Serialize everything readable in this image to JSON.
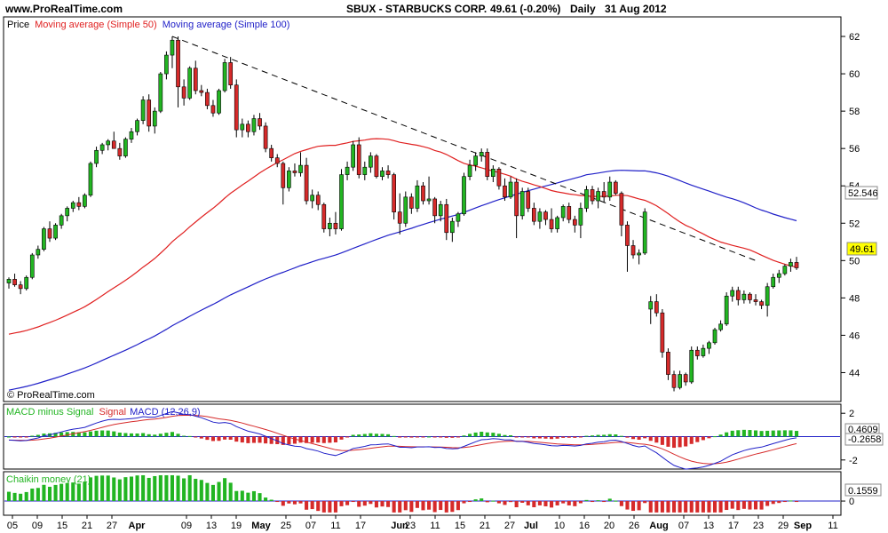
{
  "header": {
    "site": "www.ProRealTime.com",
    "title": "SBUX - STARBUCKS CORP.",
    "quote": "49.61 (-0.20%)",
    "period": "Daily",
    "date": "31 Aug 2012"
  },
  "watermark": "© ProRealTime.com",
  "colors": {
    "up": "#22b522",
    "down": "#d62a2a",
    "ma50": "#e02020",
    "ma100": "#2020c8",
    "trendline": "#000000",
    "macd_pos": "#22b522",
    "macd_neg": "#d62a2a",
    "price_badge": "#ffff00",
    "value_badge": "#ffffff"
  },
  "chart_data": [
    {
      "type": "candlestick",
      "legend": {
        "price": "Price",
        "ma50": "Moving average (Simple 50)",
        "ma100": "Moving average (Simple 100)"
      },
      "ylim": [
        42.5,
        63
      ],
      "yticks": [
        44,
        46,
        48,
        50,
        52,
        54,
        56,
        58,
        60,
        62
      ],
      "last_price_label": "49.61",
      "ma100_label": "52.546",
      "x_day_labels": [
        "05",
        "09",
        "15",
        "21",
        "27",
        "09",
        "13",
        "19",
        "25",
        "07",
        "11",
        "17",
        "23",
        "11",
        "15",
        "21",
        "27",
        "10",
        "16",
        "20",
        "26",
        "07",
        "13",
        "17",
        "23",
        "29",
        "11"
      ],
      "x_month_labels": [
        "Apr",
        "May",
        "Jun",
        "Jul",
        "Aug",
        "Sep"
      ],
      "candles": [
        {
          "o": 48.8,
          "h": 49.1,
          "l": 48.5,
          "c": 49.0
        },
        {
          "o": 49.0,
          "h": 49.3,
          "l": 48.6,
          "c": 48.7
        },
        {
          "o": 48.7,
          "h": 48.9,
          "l": 48.2,
          "c": 48.5
        },
        {
          "o": 48.5,
          "h": 49.2,
          "l": 48.4,
          "c": 49.1
        },
        {
          "o": 49.1,
          "h": 50.4,
          "l": 49.0,
          "c": 50.3
        },
        {
          "o": 50.3,
          "h": 50.8,
          "l": 50.1,
          "c": 50.6
        },
        {
          "o": 50.6,
          "h": 51.8,
          "l": 50.5,
          "c": 51.7
        },
        {
          "o": 51.7,
          "h": 52.1,
          "l": 51.0,
          "c": 51.2
        },
        {
          "o": 51.2,
          "h": 52.0,
          "l": 51.1,
          "c": 51.9
        },
        {
          "o": 51.9,
          "h": 52.5,
          "l": 51.7,
          "c": 52.4
        },
        {
          "o": 52.4,
          "h": 52.9,
          "l": 52.1,
          "c": 52.8
        },
        {
          "o": 52.8,
          "h": 53.2,
          "l": 52.6,
          "c": 53.1
        },
        {
          "o": 53.1,
          "h": 53.4,
          "l": 52.7,
          "c": 52.9
        },
        {
          "o": 52.9,
          "h": 53.6,
          "l": 52.8,
          "c": 53.5
        },
        {
          "o": 53.5,
          "h": 55.3,
          "l": 53.4,
          "c": 55.2
        },
        {
          "o": 55.2,
          "h": 56.1,
          "l": 55.0,
          "c": 55.9
        },
        {
          "o": 55.9,
          "h": 56.3,
          "l": 55.7,
          "c": 56.2
        },
        {
          "o": 56.2,
          "h": 56.5,
          "l": 55.9,
          "c": 56.4
        },
        {
          "o": 56.4,
          "h": 56.9,
          "l": 56.1,
          "c": 56.0
        },
        {
          "o": 56.0,
          "h": 56.3,
          "l": 55.4,
          "c": 55.6
        },
        {
          "o": 55.6,
          "h": 56.6,
          "l": 55.5,
          "c": 56.5
        },
        {
          "o": 56.5,
          "h": 57.1,
          "l": 56.3,
          "c": 56.9
        },
        {
          "o": 56.9,
          "h": 57.6,
          "l": 56.7,
          "c": 57.5
        },
        {
          "o": 57.5,
          "h": 58.8,
          "l": 57.3,
          "c": 58.6
        },
        {
          "o": 58.6,
          "h": 58.9,
          "l": 56.9,
          "c": 57.2
        },
        {
          "o": 57.2,
          "h": 58.2,
          "l": 56.8,
          "c": 58.0
        },
        {
          "o": 58.0,
          "h": 60.1,
          "l": 57.9,
          "c": 60.0
        },
        {
          "o": 60.0,
          "h": 61.2,
          "l": 59.7,
          "c": 61.0
        },
        {
          "o": 61.0,
          "h": 62.0,
          "l": 60.3,
          "c": 61.8
        },
        {
          "o": 61.8,
          "h": 62.0,
          "l": 58.2,
          "c": 59.3
        },
        {
          "o": 59.3,
          "h": 59.7,
          "l": 58.3,
          "c": 58.7
        },
        {
          "o": 58.7,
          "h": 60.4,
          "l": 58.6,
          "c": 60.3
        },
        {
          "o": 60.3,
          "h": 60.7,
          "l": 58.9,
          "c": 59.1
        },
        {
          "o": 59.1,
          "h": 59.4,
          "l": 58.8,
          "c": 59.0
        },
        {
          "o": 59.0,
          "h": 59.2,
          "l": 58.1,
          "c": 58.3
        },
        {
          "o": 58.3,
          "h": 58.6,
          "l": 57.7,
          "c": 57.9
        },
        {
          "o": 57.9,
          "h": 59.2,
          "l": 57.8,
          "c": 59.1
        },
        {
          "o": 59.1,
          "h": 60.8,
          "l": 59.0,
          "c": 60.6
        },
        {
          "o": 60.6,
          "h": 60.9,
          "l": 59.2,
          "c": 59.4
        },
        {
          "o": 59.4,
          "h": 59.7,
          "l": 56.6,
          "c": 57.0
        },
        {
          "o": 57.0,
          "h": 57.6,
          "l": 56.6,
          "c": 57.3
        },
        {
          "o": 57.3,
          "h": 57.5,
          "l": 56.6,
          "c": 56.9
        },
        {
          "o": 56.9,
          "h": 57.8,
          "l": 56.7,
          "c": 57.6
        },
        {
          "o": 57.6,
          "h": 57.9,
          "l": 57.0,
          "c": 57.2
        },
        {
          "o": 57.2,
          "h": 57.4,
          "l": 55.8,
          "c": 56.0
        },
        {
          "o": 56.0,
          "h": 56.2,
          "l": 55.3,
          "c": 55.5
        },
        {
          "o": 55.5,
          "h": 55.7,
          "l": 55.0,
          "c": 55.2
        },
        {
          "o": 55.2,
          "h": 55.3,
          "l": 53.0,
          "c": 53.9
        },
        {
          "o": 53.9,
          "h": 55.0,
          "l": 53.7,
          "c": 54.8
        },
        {
          "o": 54.8,
          "h": 55.2,
          "l": 54.5,
          "c": 54.7
        },
        {
          "o": 54.7,
          "h": 55.8,
          "l": 54.5,
          "c": 55.1
        },
        {
          "o": 55.1,
          "h": 55.5,
          "l": 53.0,
          "c": 53.2
        },
        {
          "o": 53.2,
          "h": 53.8,
          "l": 52.8,
          "c": 53.5
        },
        {
          "o": 53.5,
          "h": 53.7,
          "l": 52.7,
          "c": 53.0
        },
        {
          "o": 53.0,
          "h": 53.1,
          "l": 51.5,
          "c": 51.7
        },
        {
          "o": 51.7,
          "h": 52.3,
          "l": 51.3,
          "c": 52.0
        },
        {
          "o": 52.0,
          "h": 52.6,
          "l": 51.4,
          "c": 51.7
        },
        {
          "o": 51.7,
          "h": 54.9,
          "l": 51.6,
          "c": 54.6
        },
        {
          "o": 54.6,
          "h": 55.3,
          "l": 54.3,
          "c": 55.0
        },
        {
          "o": 55.0,
          "h": 56.4,
          "l": 54.8,
          "c": 56.2
        },
        {
          "o": 56.2,
          "h": 56.6,
          "l": 54.4,
          "c": 54.6
        },
        {
          "o": 54.6,
          "h": 55.3,
          "l": 54.3,
          "c": 55.0
        },
        {
          "o": 55.0,
          "h": 55.8,
          "l": 54.7,
          "c": 55.6
        },
        {
          "o": 55.6,
          "h": 55.7,
          "l": 54.4,
          "c": 54.5
        },
        {
          "o": 54.5,
          "h": 55.0,
          "l": 54.3,
          "c": 54.8
        },
        {
          "o": 54.8,
          "h": 55.1,
          "l": 54.4,
          "c": 54.6
        },
        {
          "o": 54.6,
          "h": 54.7,
          "l": 52.2,
          "c": 52.6
        },
        {
          "o": 52.6,
          "h": 53.6,
          "l": 51.4,
          "c": 52.0
        },
        {
          "o": 52.0,
          "h": 53.7,
          "l": 51.8,
          "c": 53.4
        },
        {
          "o": 53.4,
          "h": 53.6,
          "l": 52.5,
          "c": 52.8
        },
        {
          "o": 52.8,
          "h": 54.3,
          "l": 52.6,
          "c": 54.0
        },
        {
          "o": 54.0,
          "h": 54.2,
          "l": 53.0,
          "c": 53.2
        },
        {
          "o": 53.2,
          "h": 54.5,
          "l": 53.0,
          "c": 53.3
        },
        {
          "o": 53.3,
          "h": 53.4,
          "l": 52.0,
          "c": 52.4
        },
        {
          "o": 52.4,
          "h": 53.2,
          "l": 52.1,
          "c": 53.0
        },
        {
          "o": 53.0,
          "h": 53.3,
          "l": 51.1,
          "c": 51.5
        },
        {
          "o": 51.5,
          "h": 52.3,
          "l": 51.0,
          "c": 52.1
        },
        {
          "o": 52.1,
          "h": 52.6,
          "l": 51.8,
          "c": 52.5
        },
        {
          "o": 52.5,
          "h": 54.7,
          "l": 52.4,
          "c": 54.5
        },
        {
          "o": 54.5,
          "h": 55.4,
          "l": 54.3,
          "c": 55.1
        },
        {
          "o": 55.1,
          "h": 55.8,
          "l": 54.8,
          "c": 55.6
        },
        {
          "o": 55.6,
          "h": 56.0,
          "l": 55.3,
          "c": 55.8
        },
        {
          "o": 55.8,
          "h": 56.0,
          "l": 54.3,
          "c": 54.5
        },
        {
          "o": 54.5,
          "h": 55.1,
          "l": 54.2,
          "c": 54.9
        },
        {
          "o": 54.9,
          "h": 55.0,
          "l": 53.8,
          "c": 54.0
        },
        {
          "o": 54.0,
          "h": 54.4,
          "l": 53.2,
          "c": 53.4
        },
        {
          "o": 53.4,
          "h": 54.5,
          "l": 53.3,
          "c": 54.2
        },
        {
          "o": 54.2,
          "h": 54.4,
          "l": 51.2,
          "c": 52.4
        },
        {
          "o": 52.4,
          "h": 53.9,
          "l": 52.2,
          "c": 53.7
        },
        {
          "o": 53.7,
          "h": 53.9,
          "l": 52.6,
          "c": 52.8
        },
        {
          "o": 52.8,
          "h": 53.1,
          "l": 51.9,
          "c": 52.1
        },
        {
          "o": 52.1,
          "h": 52.8,
          "l": 51.7,
          "c": 52.6
        },
        {
          "o": 52.6,
          "h": 52.7,
          "l": 51.9,
          "c": 52.2
        },
        {
          "o": 52.2,
          "h": 52.8,
          "l": 51.5,
          "c": 51.7
        },
        {
          "o": 51.7,
          "h": 52.4,
          "l": 51.5,
          "c": 52.3
        },
        {
          "o": 52.3,
          "h": 53.0,
          "l": 52.1,
          "c": 52.9
        },
        {
          "o": 52.9,
          "h": 53.1,
          "l": 52.0,
          "c": 52.2
        },
        {
          "o": 52.2,
          "h": 52.4,
          "l": 51.5,
          "c": 51.9
        },
        {
          "o": 51.9,
          "h": 53.1,
          "l": 51.2,
          "c": 52.8
        },
        {
          "o": 52.8,
          "h": 54.0,
          "l": 52.6,
          "c": 53.8
        },
        {
          "o": 53.8,
          "h": 54.0,
          "l": 53.0,
          "c": 53.2
        },
        {
          "o": 53.2,
          "h": 53.9,
          "l": 52.8,
          "c": 53.7
        },
        {
          "o": 53.7,
          "h": 54.2,
          "l": 53.1,
          "c": 53.4
        },
        {
          "o": 53.4,
          "h": 54.5,
          "l": 53.2,
          "c": 54.2
        },
        {
          "o": 54.2,
          "h": 54.3,
          "l": 53.5,
          "c": 53.6
        },
        {
          "o": 53.6,
          "h": 53.7,
          "l": 51.3,
          "c": 51.9
        },
        {
          "o": 51.9,
          "h": 52.1,
          "l": 49.4,
          "c": 50.8
        },
        {
          "o": 50.8,
          "h": 51.1,
          "l": 50.1,
          "c": 50.3
        },
        {
          "o": 50.3,
          "h": 50.6,
          "l": 49.8,
          "c": 50.4
        },
        {
          "o": 50.4,
          "h": 52.8,
          "l": 50.3,
          "c": 52.6
        },
        {
          "o": 47.4,
          "h": 48.1,
          "l": 46.6,
          "c": 47.8
        },
        {
          "o": 47.8,
          "h": 48.2,
          "l": 47.0,
          "c": 47.2
        },
        {
          "o": 47.2,
          "h": 47.4,
          "l": 44.8,
          "c": 45.1
        },
        {
          "o": 45.1,
          "h": 45.3,
          "l": 43.6,
          "c": 43.9
        },
        {
          "o": 43.9,
          "h": 44.1,
          "l": 43.0,
          "c": 43.2
        },
        {
          "o": 43.2,
          "h": 44.1,
          "l": 43.1,
          "c": 43.9
        },
        {
          "o": 43.9,
          "h": 44.0,
          "l": 43.3,
          "c": 43.5
        },
        {
          "o": 43.5,
          "h": 45.4,
          "l": 43.4,
          "c": 45.2
        },
        {
          "o": 45.2,
          "h": 45.4,
          "l": 44.7,
          "c": 44.9
        },
        {
          "o": 44.9,
          "h": 45.5,
          "l": 44.8,
          "c": 45.3
        },
        {
          "o": 45.3,
          "h": 45.7,
          "l": 45.0,
          "c": 45.6
        },
        {
          "o": 45.6,
          "h": 46.4,
          "l": 45.5,
          "c": 46.3
        },
        {
          "o": 46.3,
          "h": 46.8,
          "l": 46.2,
          "c": 46.6
        },
        {
          "o": 46.6,
          "h": 48.3,
          "l": 46.5,
          "c": 48.1
        },
        {
          "o": 48.1,
          "h": 48.6,
          "l": 47.8,
          "c": 48.4
        },
        {
          "o": 48.4,
          "h": 48.6,
          "l": 47.6,
          "c": 47.9
        },
        {
          "o": 47.9,
          "h": 48.4,
          "l": 47.7,
          "c": 48.2
        },
        {
          "o": 48.2,
          "h": 48.3,
          "l": 47.7,
          "c": 47.9
        },
        {
          "o": 47.9,
          "h": 48.2,
          "l": 47.6,
          "c": 47.8
        },
        {
          "o": 47.8,
          "h": 47.9,
          "l": 47.4,
          "c": 47.6
        },
        {
          "o": 47.6,
          "h": 48.8,
          "l": 47.0,
          "c": 48.6
        },
        {
          "o": 48.6,
          "h": 49.3,
          "l": 48.5,
          "c": 49.1
        },
        {
          "o": 49.1,
          "h": 49.5,
          "l": 48.8,
          "c": 49.3
        },
        {
          "o": 49.3,
          "h": 49.8,
          "l": 49.2,
          "c": 49.7
        },
        {
          "o": 49.7,
          "h": 50.1,
          "l": 49.4,
          "c": 49.9
        },
        {
          "o": 49.9,
          "h": 50.2,
          "l": 49.5,
          "c": 49.61
        }
      ],
      "trendline": [
        {
          "from": 28,
          "value_from": 62.0
        },
        {
          "to": 128,
          "value_to": 50.0
        }
      ]
    },
    {
      "type": "bar",
      "legend": {
        "a": "MACD minus Signal",
        "b": "Signal",
        "c": "MACD (12,26,9)"
      },
      "ylim": [
        -2.7,
        2.7
      ],
      "yticks": [
        2,
        -2
      ],
      "value_label_1": "0.4609",
      "value_label_2": "-0.2658"
    },
    {
      "type": "bar",
      "legend": {
        "a": "Chaikin money (21)"
      },
      "ylim": [
        -0.35,
        0.75
      ],
      "yticks": [
        0
      ],
      "value_label": "0.1559"
    }
  ]
}
